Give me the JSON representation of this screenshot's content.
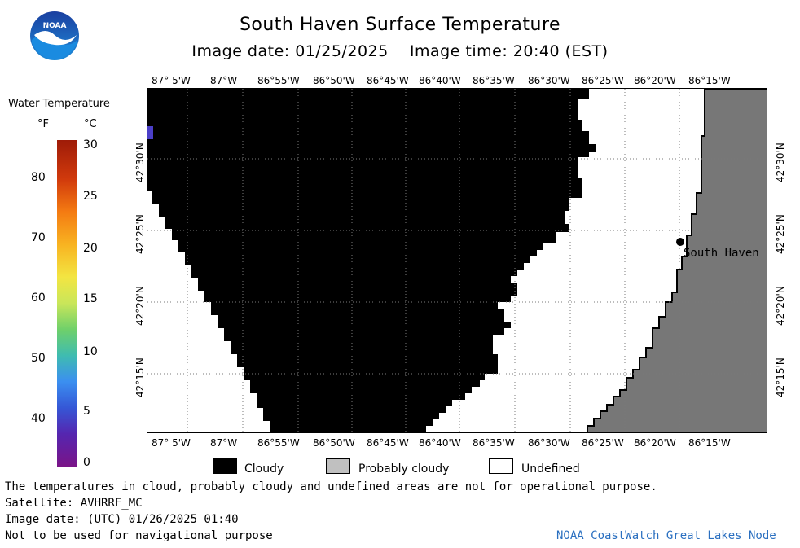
{
  "header": {
    "title": "South Haven Surface Temperature",
    "subtitle": "Image date: 01/25/2025    Image time: 20:40 (EST)",
    "logo_text": "NOAA"
  },
  "colorbar": {
    "title": "Water Temperature",
    "unit_f": "°F",
    "unit_c": "°C",
    "f_ticks": [
      "80",
      "70",
      "60",
      "50",
      "40"
    ],
    "c_ticks": [
      "30",
      "25",
      "20",
      "15",
      "10",
      "5",
      "0"
    ]
  },
  "map": {
    "lon_labels": [
      "87° 5'W",
      "87°W",
      "86°55'W",
      "86°50'W",
      "86°45'W",
      "86°40'W",
      "86°35'W",
      "86°30'W",
      "86°25'W",
      "86°20'W",
      "86°15'W"
    ],
    "lat_labels": [
      "42°30'N",
      "42°25'N",
      "42°20'N",
      "42°15'N"
    ],
    "place_label": "South Haven",
    "colors": {
      "cloud": "#000000",
      "land": "#777777",
      "undefined": "#ffffff",
      "warm_pixel": "#4b3fc8"
    }
  },
  "legend": {
    "cloudy": "Cloudy",
    "probably_cloudy": "Probably cloudy",
    "undefined": "Undefined"
  },
  "footer": {
    "line1": "The temperatures in cloud, probably cloudy and undefined areas are not for operational purpose.",
    "line2": "Satellite: AVHRRF_MC",
    "line3": "Image date: (UTC) 01/26/2025  01:40",
    "line4": "Not to be used for navigational purpose",
    "credit": "NOAA CoastWatch Great Lakes Node"
  }
}
